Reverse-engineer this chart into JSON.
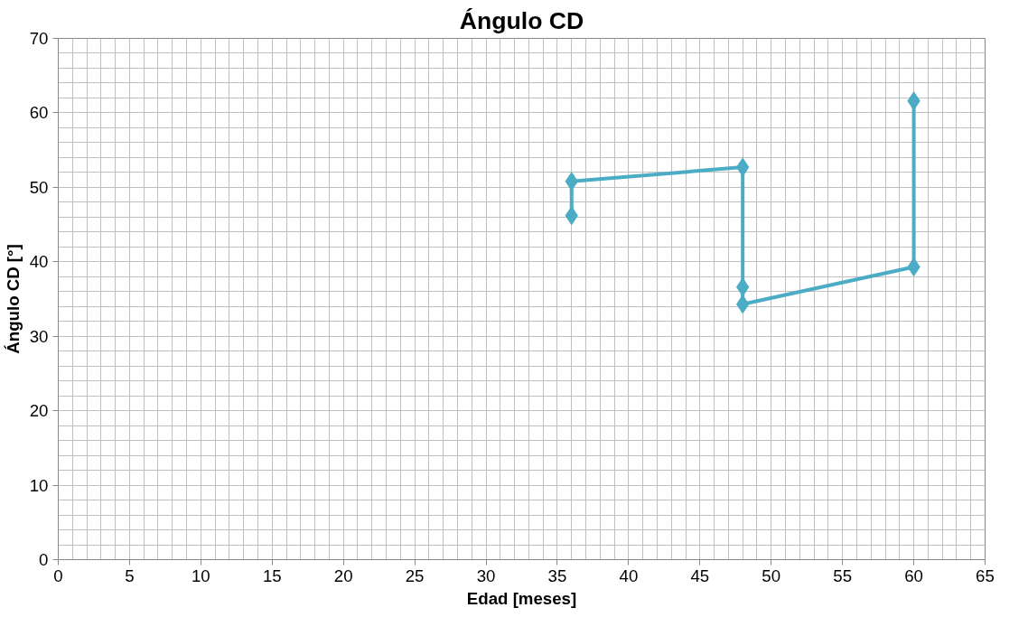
{
  "chart_data": {
    "type": "line",
    "title": "Ángulo CD",
    "xlabel": "Edad [meses]",
    "ylabel": "Ángulo CD [°]",
    "series": [
      {
        "color": "#4bacc6",
        "x": [
          36,
          36,
          48,
          48,
          48,
          60,
          60
        ],
        "values": [
          46.2,
          50.8,
          52.7,
          36.6,
          34.3,
          39.3,
          61.6
        ]
      }
    ],
    "xlim": [
      0,
      65
    ],
    "xticks": [
      0,
      5,
      10,
      15,
      20,
      25,
      30,
      35,
      40,
      45,
      50,
      55,
      60,
      65
    ],
    "ylim": [
      0,
      70
    ],
    "yticks": [
      0,
      10,
      20,
      30,
      40,
      50,
      60,
      70
    ],
    "grid": true,
    "marker": "diamond",
    "line_style": "solid"
  }
}
